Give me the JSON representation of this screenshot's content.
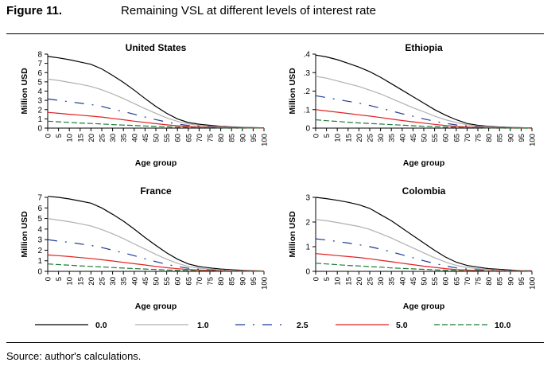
{
  "figure_number": "Figure 11.",
  "figure_title": "Remaining VSL at different levels of interest rate",
  "source": "Source: author's calculations.",
  "chart_data": {
    "type": "line",
    "x": [
      0,
      5,
      10,
      15,
      20,
      25,
      30,
      35,
      40,
      45,
      50,
      55,
      60,
      65,
      70,
      75,
      80,
      85,
      90,
      95,
      100
    ],
    "x_ticks": [
      "0",
      "5",
      "10",
      "15",
      "20",
      "25",
      "30",
      "35",
      "40",
      "45",
      "50",
      "55",
      "60",
      "65",
      "70",
      "75",
      "80",
      "85",
      "90",
      "95",
      "100"
    ],
    "xlabel": "Age group",
    "ylabel": "Million USD",
    "legend": {
      "placement": "bottom",
      "entries": [
        {
          "label": "0.0",
          "color": "#000000",
          "dash": "solid"
        },
        {
          "label": "1.0",
          "color": "#b0b0b0",
          "dash": "solid"
        },
        {
          "label": "2.5",
          "color": "#1f3a93",
          "dash": "longdash-dot"
        },
        {
          "label": "5.0",
          "color": "#e02020",
          "dash": "solid"
        },
        {
          "label": "10.0",
          "color": "#1a7a3a",
          "dash": "dash"
        }
      ]
    },
    "panels": [
      {
        "title": "United States",
        "ylim": [
          0,
          8
        ],
        "y_ticks": [
          "0",
          "1",
          "2",
          "3",
          "4",
          "5",
          "6",
          "7",
          "8"
        ],
        "y_tick_values": [
          0,
          1,
          2,
          3,
          4,
          5,
          6,
          7,
          8
        ],
        "series": [
          {
            "name": "0.0",
            "values": [
              7.75,
              7.6,
              7.4,
              7.15,
              6.9,
              6.4,
              5.7,
              4.95,
              4.1,
              3.2,
              2.35,
              1.6,
              1.0,
              0.6,
              0.42,
              0.3,
              0.2,
              0.13,
              0.08,
              0.05,
              0.03
            ]
          },
          {
            "name": "1.0",
            "values": [
              5.3,
              5.15,
              4.95,
              4.75,
              4.5,
              4.15,
              3.7,
              3.2,
              2.65,
              2.1,
              1.6,
              1.1,
              0.72,
              0.45,
              0.3,
              0.21,
              0.14,
              0.09,
              0.06,
              0.04,
              0.02
            ]
          },
          {
            "name": "2.5",
            "values": [
              3.15,
              3.0,
              2.85,
              2.7,
              2.55,
              2.35,
              2.05,
              1.8,
              1.5,
              1.2,
              0.92,
              0.65,
              0.44,
              0.28,
              0.19,
              0.13,
              0.09,
              0.06,
              0.04,
              0.03,
              0.02
            ]
          },
          {
            "name": "5.0",
            "values": [
              1.7,
              1.6,
              1.5,
              1.4,
              1.3,
              1.2,
              1.05,
              0.9,
              0.75,
              0.62,
              0.48,
              0.35,
              0.25,
              0.17,
              0.12,
              0.08,
              0.06,
              0.04,
              0.03,
              0.02,
              0.01
            ]
          },
          {
            "name": "10.0",
            "values": [
              0.75,
              0.68,
              0.62,
              0.55,
              0.5,
              0.45,
              0.38,
              0.33,
              0.28,
              0.23,
              0.18,
              0.14,
              0.1,
              0.08,
              0.06,
              0.04,
              0.03,
              0.02,
              0.01,
              0.01,
              0.01
            ]
          }
        ]
      },
      {
        "title": "Ethiopia",
        "ylim": [
          0,
          0.4
        ],
        "y_ticks": [
          "0",
          ".1",
          ".2",
          ".3",
          ".4"
        ],
        "y_tick_values": [
          0,
          0.1,
          0.2,
          0.3,
          0.4
        ],
        "series": [
          {
            "name": "0.0",
            "values": [
              0.395,
              0.385,
              0.37,
              0.35,
              0.33,
              0.305,
              0.275,
              0.24,
              0.205,
              0.17,
              0.135,
              0.1,
              0.07,
              0.045,
              0.025,
              0.015,
              0.01,
              0.006,
              0.004,
              0.002,
              0.001
            ]
          },
          {
            "name": "1.0",
            "values": [
              0.28,
              0.27,
              0.255,
              0.24,
              0.225,
              0.205,
              0.185,
              0.16,
              0.135,
              0.11,
              0.088,
              0.065,
              0.045,
              0.03,
              0.018,
              0.011,
              0.007,
              0.004,
              0.003,
              0.002,
              0.001
            ]
          },
          {
            "name": "2.5",
            "values": [
              0.175,
              0.165,
              0.155,
              0.145,
              0.135,
              0.122,
              0.108,
              0.093,
              0.078,
              0.064,
              0.05,
              0.037,
              0.026,
              0.017,
              0.011,
              0.007,
              0.004,
              0.003,
              0.002,
              0.001,
              0.001
            ]
          },
          {
            "name": "5.0",
            "values": [
              0.1,
              0.093,
              0.086,
              0.079,
              0.072,
              0.065,
              0.057,
              0.049,
              0.041,
              0.034,
              0.027,
              0.02,
              0.014,
              0.009,
              0.006,
              0.004,
              0.002,
              0.002,
              0.001,
              0.001,
              0.0
            ]
          },
          {
            "name": "10.0",
            "values": [
              0.045,
              0.04,
              0.036,
              0.032,
              0.028,
              0.025,
              0.022,
              0.019,
              0.016,
              0.013,
              0.01,
              0.008,
              0.006,
              0.004,
              0.003,
              0.002,
              0.001,
              0.001,
              0.0,
              0.0,
              0.0
            ]
          }
        ]
      },
      {
        "title": "France",
        "ylim": [
          0,
          7
        ],
        "y_ticks": [
          "0",
          "1",
          "2",
          "3",
          "4",
          "5",
          "6",
          "7"
        ],
        "y_tick_values": [
          0,
          1,
          2,
          3,
          4,
          5,
          6,
          7
        ],
        "series": [
          {
            "name": "0.0",
            "values": [
              7.1,
              7.0,
              6.85,
              6.65,
              6.45,
              6.0,
              5.4,
              4.75,
              4.0,
              3.2,
              2.45,
              1.75,
              1.15,
              0.7,
              0.45,
              0.32,
              0.22,
              0.15,
              0.1,
              0.06,
              0.03
            ]
          },
          {
            "name": "1.0",
            "values": [
              5.0,
              4.85,
              4.7,
              4.5,
              4.3,
              3.95,
              3.55,
              3.1,
              2.6,
              2.1,
              1.6,
              1.15,
              0.76,
              0.47,
              0.3,
              0.21,
              0.14,
              0.1,
              0.06,
              0.04,
              0.02
            ]
          },
          {
            "name": "2.5",
            "values": [
              3.0,
              2.85,
              2.75,
              2.6,
              2.45,
              2.25,
              2.0,
              1.75,
              1.48,
              1.2,
              0.92,
              0.66,
              0.45,
              0.29,
              0.19,
              0.13,
              0.09,
              0.06,
              0.04,
              0.03,
              0.02
            ]
          },
          {
            "name": "5.0",
            "values": [
              1.55,
              1.48,
              1.4,
              1.3,
              1.22,
              1.1,
              0.98,
              0.85,
              0.72,
              0.6,
              0.47,
              0.35,
              0.25,
              0.17,
              0.12,
              0.08,
              0.06,
              0.04,
              0.03,
              0.02,
              0.01
            ]
          },
          {
            "name": "10.0",
            "values": [
              0.7,
              0.64,
              0.58,
              0.52,
              0.47,
              0.42,
              0.36,
              0.31,
              0.26,
              0.22,
              0.17,
              0.13,
              0.1,
              0.07,
              0.05,
              0.04,
              0.03,
              0.02,
              0.01,
              0.01,
              0.01
            ]
          }
        ]
      },
      {
        "title": "Colombia",
        "ylim": [
          0,
          3
        ],
        "y_ticks": [
          "0",
          "1",
          "2",
          "3"
        ],
        "y_tick_values": [
          0,
          1,
          2,
          3
        ],
        "series": [
          {
            "name": "0.0",
            "values": [
              3.0,
              2.95,
              2.88,
              2.8,
              2.7,
              2.55,
              2.3,
              2.05,
              1.75,
              1.45,
              1.15,
              0.85,
              0.58,
              0.37,
              0.24,
              0.17,
              0.11,
              0.08,
              0.05,
              0.03,
              0.02
            ]
          },
          {
            "name": "1.0",
            "values": [
              2.1,
              2.05,
              1.98,
              1.9,
              1.82,
              1.7,
              1.53,
              1.35,
              1.15,
              0.95,
              0.75,
              0.55,
              0.38,
              0.24,
              0.16,
              0.11,
              0.07,
              0.05,
              0.03,
              0.02,
              0.01
            ]
          },
          {
            "name": "2.5",
            "values": [
              1.32,
              1.27,
              1.21,
              1.15,
              1.08,
              1.0,
              0.9,
              0.79,
              0.67,
              0.55,
              0.43,
              0.32,
              0.22,
              0.14,
              0.09,
              0.06,
              0.04,
              0.03,
              0.02,
              0.01,
              0.01
            ]
          },
          {
            "name": "5.0",
            "values": [
              0.72,
              0.68,
              0.64,
              0.6,
              0.56,
              0.51,
              0.45,
              0.39,
              0.33,
              0.27,
              0.21,
              0.16,
              0.11,
              0.07,
              0.05,
              0.03,
              0.02,
              0.02,
              0.01,
              0.01,
              0.0
            ]
          },
          {
            "name": "10.0",
            "values": [
              0.33,
              0.3,
              0.27,
              0.24,
              0.22,
              0.19,
              0.17,
              0.14,
              0.12,
              0.1,
              0.08,
              0.06,
              0.04,
              0.03,
              0.02,
              0.02,
              0.01,
              0.01,
              0.0,
              0.0,
              0.0
            ]
          }
        ]
      }
    ]
  }
}
